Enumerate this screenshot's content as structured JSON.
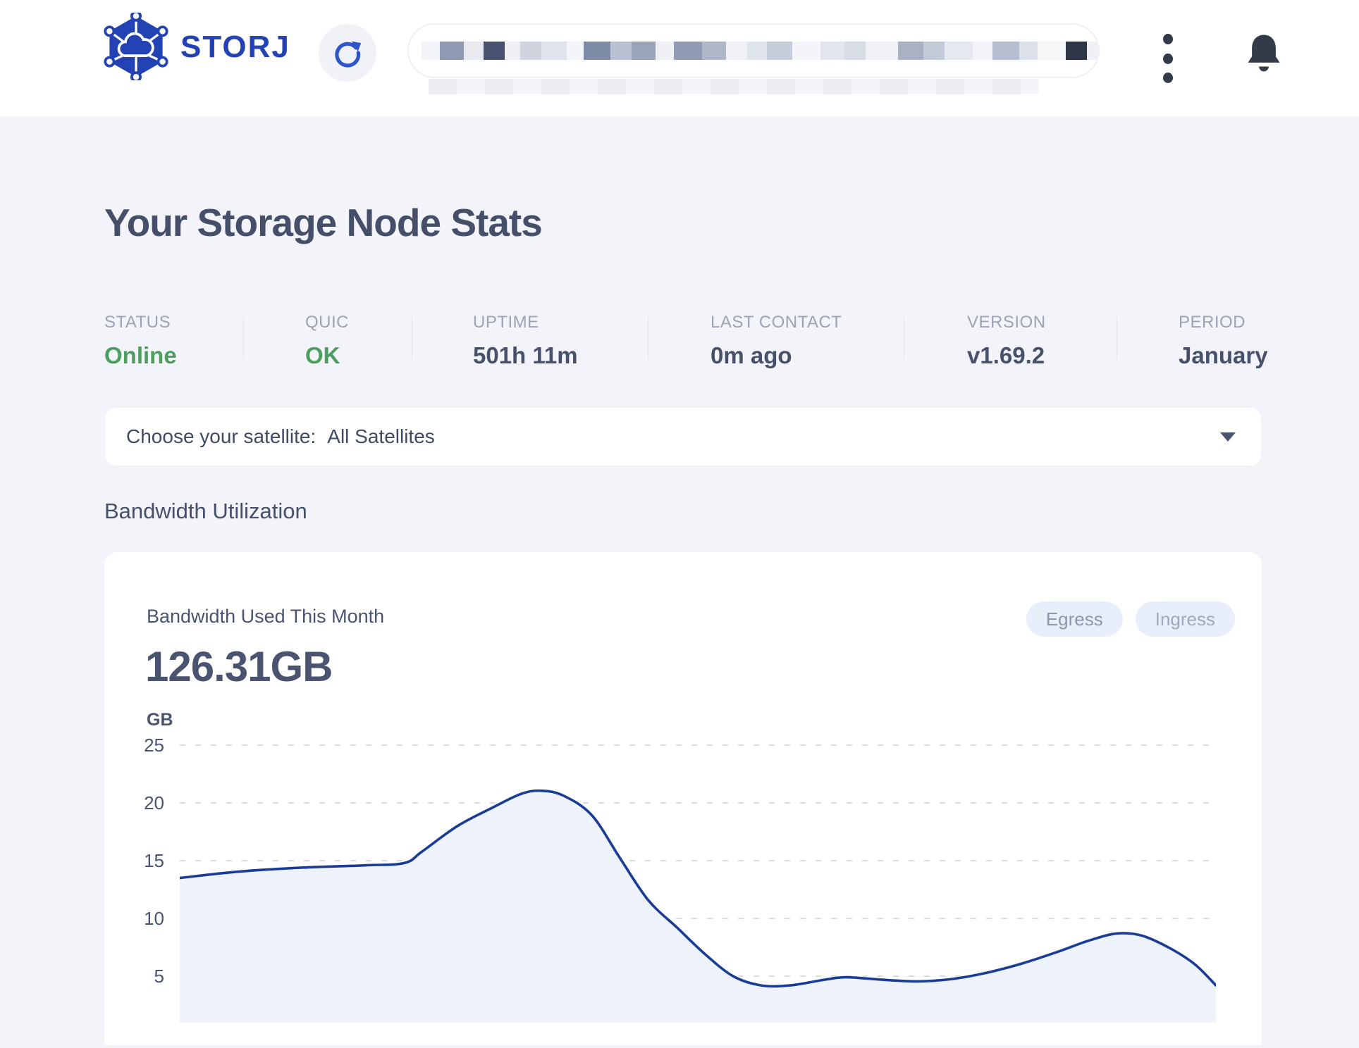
{
  "header": {
    "brand": "STORJ",
    "icons": {
      "logo": "storj-hexagon-network-logo",
      "refresh": "refresh-icon",
      "menu": "kebab-menu-icon",
      "notifications": "bell-icon",
      "satellite_caret": "caret-down-icon"
    }
  },
  "page": {
    "title": "Your Storage Node Stats"
  },
  "stats": [
    {
      "label": "STATUS",
      "value": "Online",
      "status_color": "#4c9e5f"
    },
    {
      "label": "QUIC",
      "value": "OK",
      "status_color": "#4c9e5f"
    },
    {
      "label": "UPTIME",
      "value": "501h 11m"
    },
    {
      "label": "LAST CONTACT",
      "value": "0m ago"
    },
    {
      "label": "VERSION",
      "value": "v1.69.2"
    },
    {
      "label": "PERIOD",
      "value": "January"
    }
  ],
  "satellite_picker": {
    "label": "Choose your satellite:",
    "value": "All Satellites"
  },
  "sections": {
    "bandwidth_heading": "Bandwidth Utilization"
  },
  "bandwidth_card": {
    "title": "Bandwidth Used This Month",
    "total": "126.31GB",
    "legend": [
      {
        "label": "Egress"
      },
      {
        "label": "Ingress"
      }
    ]
  },
  "chart_data": {
    "type": "area",
    "title": "Bandwidth Used This Month",
    "ylabel": "GB",
    "yticks": [
      25,
      20,
      15,
      10,
      5
    ],
    "ylim": [
      0,
      25
    ],
    "grid": "dashed horizontal",
    "legend_position": "top-right",
    "x_axis_note": "days of month, tick labels cropped out of screenshot",
    "colors": {
      "line": "#1b3c96",
      "fill": "#eef3fb",
      "gridline": "#d9dbe3"
    },
    "series": [
      {
        "name": "Total bandwidth (GB)",
        "x_percent": [
          0,
          5.7,
          11.9,
          18.0,
          21.7,
          23.4,
          26.8,
          30.2,
          33.0,
          35.0,
          37.1,
          39.8,
          42.5,
          45.2,
          48.0,
          50.7,
          53.4,
          56.1,
          58.9,
          62.3,
          64.3,
          67.7,
          71.1,
          74.5,
          77.9,
          81.3,
          84.7,
          87.8,
          90.5,
          92.9,
          95.6,
          98.0,
          100
        ],
        "gb": [
          13.5,
          14.05,
          14.4,
          14.6,
          14.8,
          15.8,
          18.0,
          19.6,
          20.8,
          21.05,
          20.6,
          18.9,
          15.2,
          11.6,
          9.2,
          6.9,
          5.0,
          4.2,
          4.2,
          4.7,
          4.9,
          4.7,
          4.55,
          4.75,
          5.3,
          6.1,
          7.1,
          8.1,
          8.7,
          8.5,
          7.4,
          6.0,
          4.2
        ]
      }
    ]
  }
}
